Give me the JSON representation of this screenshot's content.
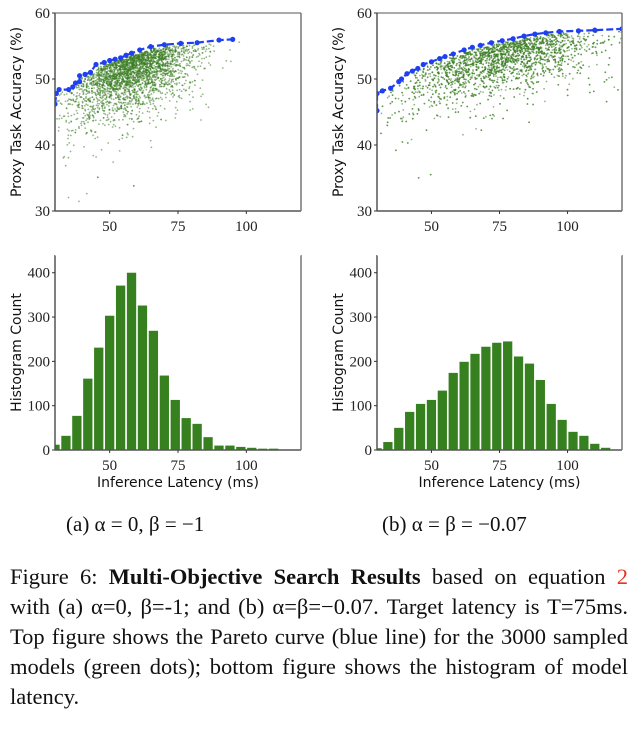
{
  "figure": {
    "subcaptions": [
      "(a) α = 0, β = −1",
      "(b) α = β = −0.07"
    ],
    "caption": {
      "prefix": "Figure 6: ",
      "bold": "Multi-Objective Search Results",
      "part1": " based on equation ",
      "ref": "2",
      "part2": " with (a) α=0, β=-1; and (b) α=β=−0.07. Target latency is T=75ms. Top figure shows the Pareto curve (blue line) for the 3000 sampled models (green dots); bottom figure shows the histogram of model latency."
    }
  },
  "colors": {
    "pareto": "#1f3ff0",
    "scatter": "#3a7d22",
    "bar": "#37801f"
  },
  "chart_data": [
    {
      "type": "scatter",
      "panel": "a-top",
      "ylabel": "Proxy Task Accuracy (%)",
      "xlim": [
        30,
        120
      ],
      "ylim": [
        30,
        60
      ],
      "xticks": [
        50,
        75,
        100
      ],
      "yticks": [
        30,
        40,
        50,
        60
      ],
      "grid": false,
      "pareto": {
        "x": [
          30,
          30.5,
          31.5,
          35,
          36.5,
          37.5,
          39,
          39,
          41,
          43,
          45,
          48,
          50,
          52,
          54,
          56,
          58,
          61,
          65,
          70,
          76,
          82,
          90,
          95
        ],
        "y": [
          46.2,
          47.8,
          48.4,
          48.4,
          48.8,
          49.4,
          49.6,
          50.5,
          50.7,
          51,
          52.2,
          52.5,
          52.8,
          53,
          53.2,
          53.6,
          53.9,
          54.4,
          54.9,
          55.2,
          55.4,
          55.5,
          55.9,
          56
        ]
      },
      "scatter_count": 3000
    },
    {
      "type": "scatter",
      "panel": "b-top",
      "ylabel": "Proxy Task Accuracy (%)",
      "xlim": [
        30,
        120
      ],
      "ylim": [
        30,
        60
      ],
      "xticks": [
        50,
        75,
        100
      ],
      "yticks": [
        30,
        40,
        50,
        60
      ],
      "grid": false,
      "pareto": {
        "x": [
          30,
          30,
          32,
          35,
          38,
          39,
          41,
          43,
          45,
          47,
          50,
          53,
          55,
          58,
          62,
          65,
          68,
          72,
          76,
          80,
          84,
          88,
          92,
          97,
          104,
          110,
          120
        ],
        "y": [
          45.2,
          47.8,
          48.2,
          48.6,
          49.6,
          50,
          50.8,
          51.2,
          51.6,
          52.2,
          52.6,
          53.1,
          53.4,
          53.8,
          54.4,
          54.8,
          55.1,
          55.5,
          55.8,
          56.1,
          56.5,
          56.8,
          57,
          57.2,
          57.3,
          57.4,
          57.6
        ]
      },
      "scatter_count": 3000
    },
    {
      "type": "bar",
      "panel": "a-bottom",
      "xlabel": "Inference Latency (ms)",
      "ylabel": "Histogram Count",
      "xlim": [
        30,
        120
      ],
      "ylim": [
        0,
        440
      ],
      "xticks": [
        50,
        75,
        100
      ],
      "yticks": [
        0,
        100,
        200,
        300,
        400
      ],
      "bin_centers": [
        30,
        34,
        38,
        42,
        46,
        50,
        54,
        58,
        62,
        66,
        70,
        74,
        78,
        82,
        86,
        90,
        94,
        98,
        102,
        106,
        110,
        114
      ],
      "values": [
        12,
        32,
        77,
        161,
        231,
        303,
        371,
        400,
        326,
        269,
        168,
        113,
        72,
        59,
        29,
        10,
        10,
        7,
        5,
        3,
        3,
        1
      ]
    },
    {
      "type": "bar",
      "panel": "b-bottom",
      "xlabel": "Inference Latency (ms)",
      "ylabel": "Histogram Count",
      "xlim": [
        30,
        120
      ],
      "ylim": [
        0,
        440
      ],
      "xticks": [
        50,
        75,
        100
      ],
      "yticks": [
        0,
        100,
        200,
        300,
        400
      ],
      "bin_centers": [
        30,
        34,
        38,
        42,
        46,
        50,
        54,
        58,
        62,
        66,
        70,
        74,
        78,
        82,
        86,
        90,
        94,
        98,
        102,
        106,
        110,
        114
      ],
      "values": [
        4,
        18,
        50,
        86,
        104,
        113,
        134,
        174,
        199,
        217,
        233,
        242,
        245,
        211,
        195,
        158,
        104,
        68,
        41,
        32,
        14,
        5
      ]
    }
  ]
}
